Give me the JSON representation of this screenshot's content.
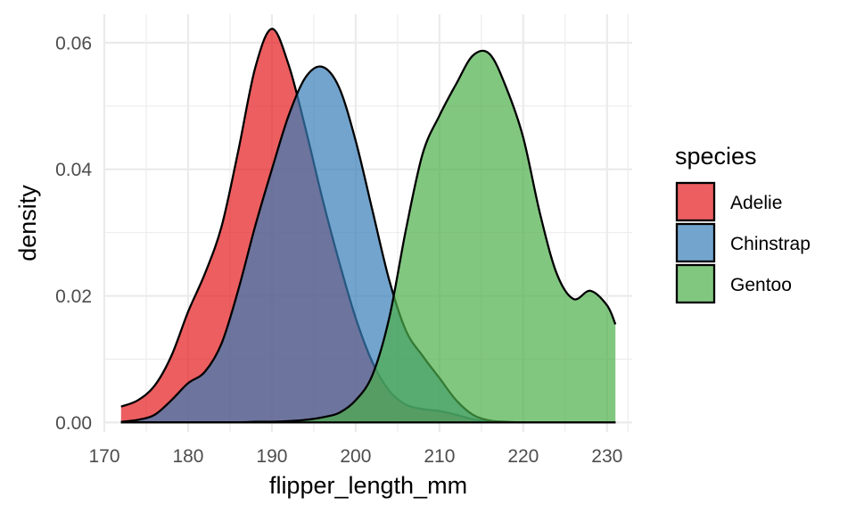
{
  "chart_data": {
    "type": "area",
    "subtype": "density",
    "xlabel": "flipper_length_mm",
    "ylabel": "density",
    "xlim": [
      170,
      233
    ],
    "ylim": [
      -0.0015,
      0.0645
    ],
    "x_ticks": [
      170,
      180,
      190,
      200,
      210,
      220,
      230
    ],
    "y_ticks": [
      0,
      0.02,
      0.04,
      0.06
    ],
    "x_tick_labels": [
      "170",
      "180",
      "190",
      "200",
      "210",
      "220",
      "230"
    ],
    "y_tick_labels": [
      "0.00",
      "0.02",
      "0.04",
      "0.06"
    ],
    "grid": true,
    "legend": {
      "title": "species",
      "position": "right"
    },
    "series": [
      {
        "name": "Adelie",
        "color": "#e41a1c",
        "x": [
          172,
          174,
          176,
          178,
          180,
          182,
          184,
          186,
          188,
          190,
          192,
          194,
          196,
          198,
          200,
          202,
          204,
          206,
          208,
          210,
          212,
          214,
          216,
          218,
          220,
          222,
          224,
          226,
          228,
          230,
          231
        ],
        "y": [
          0.0025,
          0.0035,
          0.0058,
          0.0105,
          0.0175,
          0.0235,
          0.031,
          0.043,
          0.056,
          0.0622,
          0.0565,
          0.0465,
          0.0355,
          0.0255,
          0.0165,
          0.0095,
          0.005,
          0.0028,
          0.0021,
          0.0018,
          0.0012,
          0.0005,
          0.0001,
          0,
          0,
          0,
          0,
          0,
          0,
          0,
          0
        ]
      },
      {
        "name": "Chinstrap",
        "color": "#377eb8",
        "x": [
          172,
          174,
          176,
          178,
          180,
          182,
          184,
          186,
          188,
          190,
          192,
          194,
          196,
          198,
          200,
          202,
          204,
          206,
          208,
          210,
          212,
          214,
          216,
          218,
          220,
          222,
          224,
          226,
          228,
          230,
          231
        ],
        "y": [
          0.0001,
          0.0004,
          0.0012,
          0.0035,
          0.0062,
          0.008,
          0.0125,
          0.021,
          0.031,
          0.04,
          0.0485,
          0.0545,
          0.0562,
          0.053,
          0.0445,
          0.0335,
          0.0225,
          0.0145,
          0.0105,
          0.007,
          0.0035,
          0.0012,
          0.0003,
          0.0001,
          0,
          0,
          0,
          0,
          0,
          0,
          0
        ]
      },
      {
        "name": "Gentoo",
        "color": "#4daf4a",
        "x": [
          172,
          174,
          176,
          178,
          180,
          182,
          184,
          186,
          188,
          190,
          192,
          194,
          196,
          198,
          200,
          202,
          204,
          206,
          208,
          210,
          212,
          214,
          216,
          218,
          220,
          222,
          224,
          226,
          228,
          230,
          231
        ],
        "y": [
          0,
          0,
          0,
          0,
          0,
          0,
          0,
          0,
          0.0001,
          0.0001,
          0.0002,
          0.0004,
          0.0008,
          0.0015,
          0.0035,
          0.0075,
          0.0165,
          0.0305,
          0.0425,
          0.0485,
          0.0535,
          0.058,
          0.0582,
          0.0528,
          0.045,
          0.033,
          0.0235,
          0.0195,
          0.0208,
          0.0185,
          0.0155
        ]
      }
    ]
  }
}
